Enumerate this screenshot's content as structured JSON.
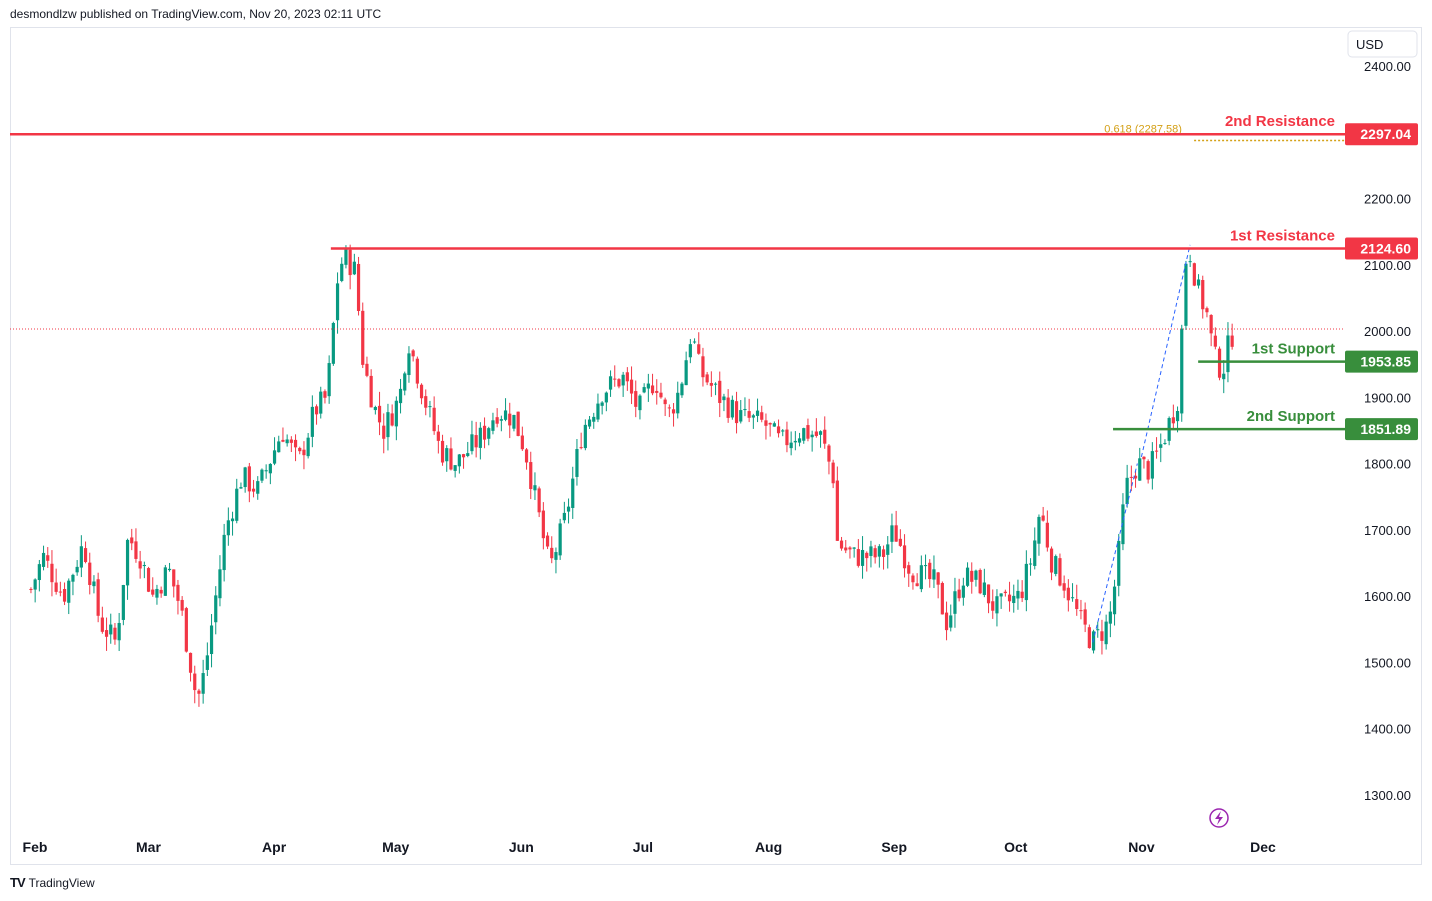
{
  "header": {
    "published": "desmondlzw published on TradingView.com, Nov 20, 2023 02:11 UTC"
  },
  "footer": {
    "brand": "TradingView",
    "logo": "TV"
  },
  "colors": {
    "up": "#089981",
    "down": "#f23645",
    "resistance": "#f23645",
    "support": "#388e3c",
    "fib": "#d4a017",
    "dotted_last": "#f23645"
  },
  "chart_data": {
    "type": "candlestick",
    "currency": "USD",
    "y_ticks": [
      "2400.00",
      "2200.00",
      "2100.00",
      "2000.00",
      "1900.00",
      "1800.00",
      "1700.00",
      "1600.00",
      "1500.00",
      "1400.00",
      "1300.00"
    ],
    "x_ticks": [
      "Feb",
      "Mar",
      "Apr",
      "May",
      "Jun",
      "Jul",
      "Aug",
      "Sep",
      "Oct",
      "Nov",
      "Dec"
    ],
    "ylim": [
      1250,
      2450
    ],
    "last_price": 2003,
    "levels": [
      {
        "label": "2nd Resistance",
        "value": 2297.04,
        "price_label": "2297.04",
        "kind": "resistance"
      },
      {
        "label": "1st Resistance",
        "value": 2124.6,
        "price_label": "2124.60",
        "kind": "resistance"
      },
      {
        "label": "1st Support",
        "value": 1953.85,
        "price_label": "1953.85",
        "kind": "support"
      },
      {
        "label": "2nd Support",
        "value": 1851.89,
        "price_label": "1851.89",
        "kind": "support"
      }
    ],
    "fib": {
      "label": "0.618 (2287.58)",
      "value": 2287.58
    },
    "price_path": [
      [
        "2023-01-31",
        1610
      ],
      [
        "2023-02-03",
        1660
      ],
      [
        "2023-02-08",
        1600
      ],
      [
        "2023-02-13",
        1680
      ],
      [
        "2023-02-17",
        1560
      ],
      [
        "2023-02-21",
        1530
      ],
      [
        "2023-02-24",
        1690
      ],
      [
        "2023-02-27",
        1660
      ],
      [
        "2023-03-02",
        1600
      ],
      [
        "2023-03-06",
        1640
      ],
      [
        "2023-03-09",
        1580
      ],
      [
        "2023-03-13",
        1440
      ],
      [
        "2023-03-15",
        1490
      ],
      [
        "2023-03-20",
        1700
      ],
      [
        "2023-03-24",
        1780
      ],
      [
        "2023-03-28",
        1760
      ],
      [
        "2023-04-03",
        1850
      ],
      [
        "2023-04-07",
        1800
      ],
      [
        "2023-04-11",
        1880
      ],
      [
        "2023-04-14",
        1900
      ],
      [
        "2023-04-17",
        2100
      ],
      [
        "2023-04-19",
        2110
      ],
      [
        "2023-04-21",
        2090
      ],
      [
        "2023-04-23",
        1950
      ],
      [
        "2023-04-26",
        1880
      ],
      [
        "2023-04-28",
        1850
      ],
      [
        "2023-05-02",
        1900
      ],
      [
        "2023-05-04",
        1990
      ],
      [
        "2023-05-08",
        1900
      ],
      [
        "2023-05-12",
        1820
      ],
      [
        "2023-05-16",
        1800
      ],
      [
        "2023-05-22",
        1840
      ],
      [
        "2023-05-26",
        1880
      ],
      [
        "2023-05-30",
        1870
      ],
      [
        "2023-06-02",
        1820
      ],
      [
        "2023-06-06",
        1700
      ],
      [
        "2023-06-08",
        1640
      ],
      [
        "2023-06-12",
        1720
      ],
      [
        "2023-06-16",
        1850
      ],
      [
        "2023-06-21",
        1910
      ],
      [
        "2023-06-26",
        1930
      ],
      [
        "2023-06-30",
        1880
      ],
      [
        "2023-07-04",
        1930
      ],
      [
        "2023-07-07",
        1870
      ],
      [
        "2023-07-10",
        1910
      ],
      [
        "2023-07-13",
        2000
      ],
      [
        "2023-07-15",
        1940
      ],
      [
        "2023-07-20",
        1900
      ],
      [
        "2023-07-25",
        1870
      ],
      [
        "2023-07-31",
        1860
      ],
      [
        "2023-08-04",
        1830
      ],
      [
        "2023-08-09",
        1850
      ],
      [
        "2023-08-14",
        1840
      ],
      [
        "2023-08-17",
        1780
      ],
      [
        "2023-08-18",
        1680
      ],
      [
        "2023-08-22",
        1660
      ],
      [
        "2023-08-29",
        1660
      ],
      [
        "2023-09-01",
        1700
      ],
      [
        "2023-09-05",
        1640
      ],
      [
        "2023-09-11",
        1620
      ],
      [
        "2023-09-14",
        1560
      ],
      [
        "2023-09-18",
        1630
      ],
      [
        "2023-09-22",
        1620
      ],
      [
        "2023-09-26",
        1580
      ],
      [
        "2023-10-02",
        1600
      ],
      [
        "2023-10-05",
        1660
      ],
      [
        "2023-10-07",
        1730
      ],
      [
        "2023-10-10",
        1650
      ],
      [
        "2023-10-13",
        1620
      ],
      [
        "2023-10-17",
        1560
      ],
      [
        "2023-10-20",
        1530
      ],
      [
        "2023-10-24",
        1560
      ],
      [
        "2023-10-26",
        1640
      ],
      [
        "2023-10-28",
        1760
      ],
      [
        "2023-10-31",
        1800
      ],
      [
        "2023-11-03",
        1790
      ],
      [
        "2023-11-06",
        1830
      ],
      [
        "2023-11-09",
        1880
      ],
      [
        "2023-11-10",
        1900
      ],
      [
        "2023-11-12",
        2110
      ],
      [
        "2023-11-13",
        2120
      ],
      [
        "2023-11-15",
        2060
      ],
      [
        "2023-11-17",
        2030
      ],
      [
        "2023-11-19",
        1960
      ],
      [
        "2023-11-21",
        1940
      ],
      [
        "2023-11-23",
        1990
      ],
      [
        "2023-11-24",
        2003
      ]
    ]
  }
}
